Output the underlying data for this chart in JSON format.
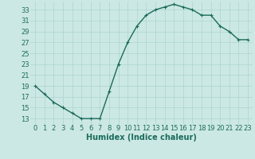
{
  "x": [
    0,
    1,
    2,
    3,
    4,
    5,
    6,
    7,
    8,
    9,
    10,
    11,
    12,
    13,
    14,
    15,
    16,
    17,
    18,
    19,
    20,
    21,
    22,
    23
  ],
  "y": [
    19,
    17.5,
    16,
    15,
    14,
    13,
    13,
    13,
    18,
    23,
    27,
    30,
    32,
    33,
    33.5,
    34,
    33.5,
    33,
    32,
    32,
    30,
    29,
    27.5,
    27.5
  ],
  "line_color": "#1a6b5a",
  "bg_color": "#cce8e4",
  "grid_color": "#aad4cf",
  "xlabel": "Humidex (Indice chaleur)",
  "xlabel_fontsize": 7,
  "ylabel_ticks": [
    13,
    15,
    17,
    19,
    21,
    23,
    25,
    27,
    29,
    31,
    33
  ],
  "ylim": [
    12,
    34.5
  ],
  "xlim": [
    -0.5,
    23.5
  ],
  "xtick_labels": [
    "0",
    "1",
    "2",
    "3",
    "4",
    "5",
    "6",
    "7",
    "8",
    "9",
    "10",
    "11",
    "12",
    "13",
    "14",
    "15",
    "16",
    "17",
    "18",
    "19",
    "20",
    "21",
    "22",
    "23"
  ],
  "marker": "+",
  "marker_size": 3,
  "line_width": 1.0,
  "tick_fontsize": 6
}
